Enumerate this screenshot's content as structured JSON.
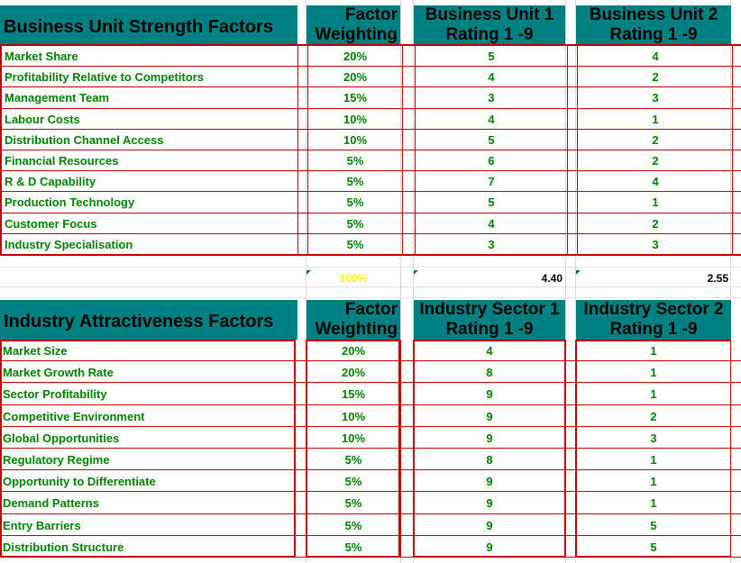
{
  "top": {
    "title": "Business Unit Strength Factors",
    "col_weight": [
      "Factor",
      "Weighting"
    ],
    "col_a": [
      "Business Unit 1",
      "Rating 1 -9"
    ],
    "col_b": [
      "Business Unit 2",
      "Rating 1 -9"
    ],
    "rows": [
      {
        "label": "Market Share",
        "weight": "20%",
        "a": "5",
        "b": "4"
      },
      {
        "label": "Profitability Relative to Competitors",
        "weight": "20%",
        "a": "4",
        "b": "2"
      },
      {
        "label": "Management Team",
        "weight": "15%",
        "a": "3",
        "b": "3"
      },
      {
        "label": "Labour Costs",
        "weight": "10%",
        "a": "4",
        "b": "1"
      },
      {
        "label": "Distribution Channel Access",
        "weight": "10%",
        "a": "5",
        "b": "2"
      },
      {
        "label": "Financial Resources",
        "weight": "5%",
        "a": "6",
        "b": "2"
      },
      {
        "label": "R & D Capability",
        "weight": "5%",
        "a": "7",
        "b": "4"
      },
      {
        "label": "Production Technology",
        "weight": "5%",
        "a": "5",
        "b": "1"
      },
      {
        "label": "Customer Focus",
        "weight": "5%",
        "a": "4",
        "b": "2"
      },
      {
        "label": "Industry Specialisation",
        "weight": "5%",
        "a": "3",
        "b": "3"
      }
    ],
    "totals": {
      "weight": "100%",
      "a": "4.40",
      "b": "2.55"
    }
  },
  "bottom": {
    "title": "Industry Attractiveness Factors",
    "col_weight": [
      "Factor",
      "Weighting"
    ],
    "col_a": [
      "Industry Sector 1",
      "Rating 1 -9"
    ],
    "col_b": [
      "Industry Sector 2",
      "Rating 1 -9"
    ],
    "rows": [
      {
        "label": "Market Size",
        "weight": "20%",
        "a": "4",
        "b": "1"
      },
      {
        "label": "Market Growth Rate",
        "weight": "20%",
        "a": "8",
        "b": "1"
      },
      {
        "label": "Sector Profitability",
        "weight": "15%",
        "a": "9",
        "b": "1"
      },
      {
        "label": "Competitive Environment",
        "weight": "10%",
        "a": "9",
        "b": "2"
      },
      {
        "label": "Global Opportunities",
        "weight": "10%",
        "a": "9",
        "b": "3"
      },
      {
        "label": "Regulatory Regime",
        "weight": "5%",
        "a": "8",
        "b": "1"
      },
      {
        "label": "Opportunity to Differentiate",
        "weight": "5%",
        "a": "9",
        "b": "1"
      },
      {
        "label": "Demand Patterns",
        "weight": "5%",
        "a": "9",
        "b": "1"
      },
      {
        "label": "Entry Barriers",
        "weight": "5%",
        "a": "9",
        "b": "5"
      },
      {
        "label": "Distribution Structure",
        "weight": "5%",
        "a": "9",
        "b": "5"
      }
    ]
  },
  "colors": {
    "header_bg": "#008080",
    "text_green": "#008000",
    "border_red": "#c00000",
    "total_yellow": "#ffff00"
  }
}
